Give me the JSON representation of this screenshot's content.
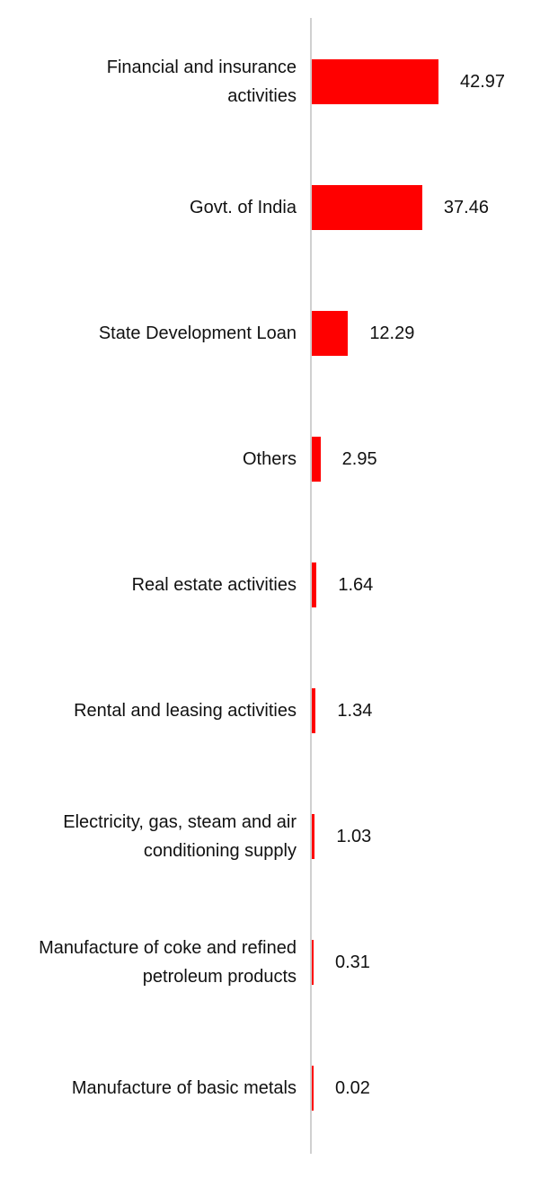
{
  "chart_data": {
    "type": "bar",
    "orientation": "horizontal",
    "categories": [
      "Financial and insurance activities",
      "Govt. of India",
      "State Development Loan",
      "Others",
      "Real estate activities",
      "Rental and leasing activities",
      "Electricity, gas, steam and air conditioning supply",
      "Manufacture of coke and refined petroleum products",
      "Manufacture of basic metals"
    ],
    "values": [
      42.97,
      37.46,
      12.29,
      2.95,
      1.64,
      1.34,
      1.03,
      0.31,
      0.02
    ],
    "color": "#ff0000"
  }
}
